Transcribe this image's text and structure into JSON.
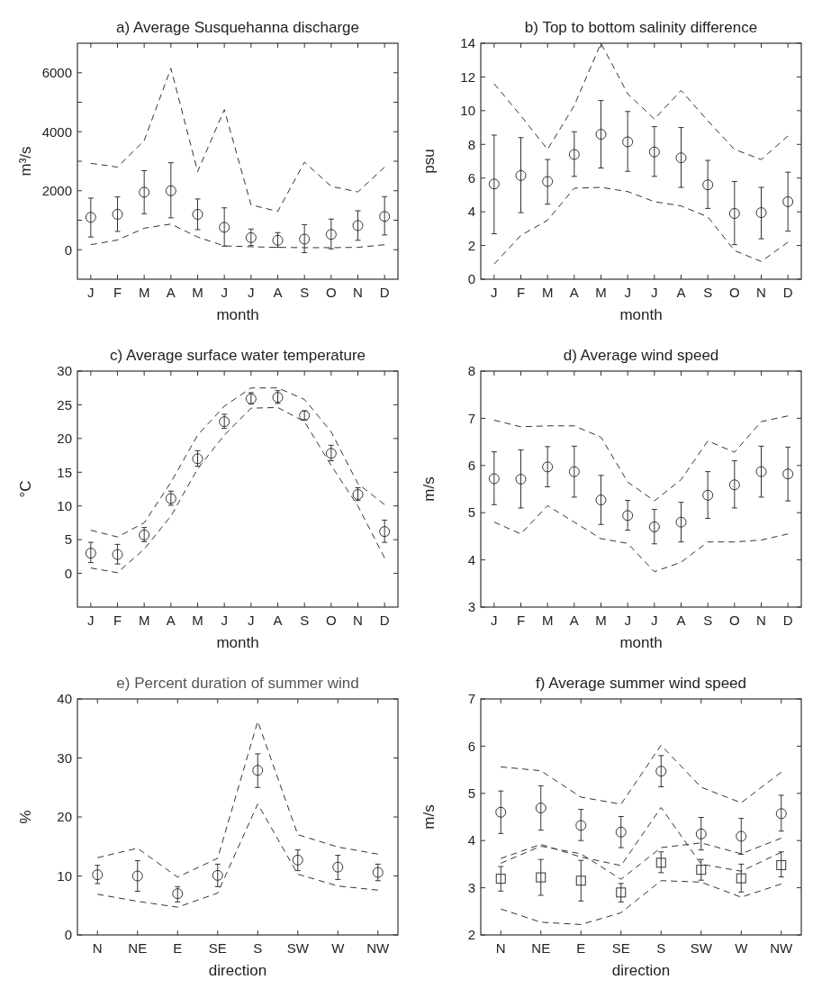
{
  "chart_data": [
    {
      "type": "scatter",
      "title": "a) Average Susquehanna discharge",
      "xlabel": "month",
      "ylabel": "m³/s",
      "categories": [
        "J",
        "F",
        "M",
        "A",
        "M",
        "J",
        "J",
        "A",
        "S",
        "O",
        "N",
        "D"
      ],
      "ylim": [
        -1000,
        7000
      ],
      "yticks": [
        0,
        {
          "value": 1000,
          "label": null
        },
        2000,
        {
          "value": 3000,
          "label": null
        },
        4000,
        {
          "value": 5000,
          "label": null
        },
        6000
      ],
      "grid": false,
      "series": [
        {
          "type": "scatter",
          "marker": "circle",
          "color": "#333333",
          "values": [
            1100,
            1200,
            1950,
            2000,
            1200,
            760,
            410,
            320,
            360,
            520,
            820,
            1130
          ],
          "errors": [
            [
              430,
              1750
            ],
            [
              620,
              1790
            ],
            [
              1220,
              2680
            ],
            [
              1080,
              2950
            ],
            [
              680,
              1720
            ],
            [
              120,
              1420
            ],
            [
              140,
              700
            ],
            [
              80,
              580
            ],
            [
              -100,
              850
            ],
            [
              30,
              1040
            ],
            [
              320,
              1320
            ],
            [
              500,
              1800
            ]
          ]
        },
        {
          "type": "line",
          "line_style": "dashed",
          "color": "#333333",
          "values": [
            2930,
            2800,
            3700,
            6150,
            2650,
            4750,
            1520,
            1300,
            2970,
            2150,
            1960,
            2800
          ]
        },
        {
          "type": "line",
          "line_style": "dashed",
          "color": "#333333",
          "values": [
            170,
            330,
            730,
            870,
            430,
            130,
            100,
            80,
            70,
            70,
            80,
            170
          ]
        }
      ]
    },
    {
      "type": "scatter",
      "title": "b) Top to bottom salinity difference",
      "xlabel": "month",
      "ylabel": "psu",
      "categories": [
        "J",
        "F",
        "M",
        "A",
        "M",
        "J",
        "J",
        "A",
        "S",
        "O",
        "N",
        "D"
      ],
      "ylim": [
        0,
        14
      ],
      "yticks": [
        0,
        2,
        4,
        6,
        8,
        10,
        12,
        14
      ],
      "grid": false,
      "series": [
        {
          "type": "scatter",
          "marker": "circle",
          "color": "#333333",
          "values": [
            5.65,
            6.15,
            5.8,
            7.4,
            8.6,
            8.15,
            7.55,
            7.2,
            5.6,
            3.9,
            3.95,
            4.6
          ],
          "errors": [
            [
              2.7,
              8.55
            ],
            [
              3.95,
              8.4
            ],
            [
              4.45,
              7.1
            ],
            [
              6.1,
              8.75
            ],
            [
              6.6,
              10.6
            ],
            [
              6.4,
              9.95
            ],
            [
              6.1,
              9.05
            ],
            [
              5.45,
              9.0
            ],
            [
              4.2,
              7.05
            ],
            [
              2.05,
              5.8
            ],
            [
              2.4,
              5.45
            ],
            [
              2.85,
              6.35
            ]
          ]
        },
        {
          "type": "line",
          "line_style": "dashed",
          "color": "#333333",
          "values": [
            11.6,
            9.7,
            7.7,
            10.3,
            14.0,
            11.0,
            9.5,
            11.2,
            9.4,
            7.7,
            7.1,
            8.5
          ]
        },
        {
          "type": "line",
          "line_style": "dashed",
          "color": "#333333",
          "values": [
            0.9,
            2.6,
            3.5,
            5.4,
            5.45,
            5.2,
            4.6,
            4.35,
            3.7,
            1.7,
            1.05,
            2.2
          ]
        }
      ]
    },
    {
      "type": "scatter",
      "title": "c) Average surface water temperature",
      "xlabel": "month",
      "ylabel": "°C",
      "categories": [
        "J",
        "F",
        "M",
        "A",
        "M",
        "J",
        "J",
        "A",
        "S",
        "O",
        "N",
        "D"
      ],
      "ylim": [
        -5,
        30
      ],
      "yticks": [
        0,
        5,
        10,
        15,
        20,
        25,
        30
      ],
      "grid": false,
      "series": [
        {
          "type": "scatter",
          "marker": "circle",
          "color": "#333333",
          "values": [
            3.0,
            2.8,
            5.7,
            11.1,
            17.0,
            22.5,
            25.9,
            26.1,
            23.4,
            17.8,
            11.7,
            6.2
          ],
          "errors": [
            [
              1.6,
              4.6
            ],
            [
              1.4,
              4.3
            ],
            [
              4.7,
              6.8
            ],
            [
              10.1,
              12.2
            ],
            [
              15.9,
              18.2
            ],
            [
              21.5,
              23.6
            ],
            [
              25.1,
              26.8
            ],
            [
              25.2,
              27.1
            ],
            [
              22.8,
              24.1
            ],
            [
              16.7,
              19.0
            ],
            [
              10.8,
              12.7
            ],
            [
              4.6,
              7.9
            ]
          ]
        },
        {
          "type": "line",
          "line_style": "dashed",
          "color": "#333333",
          "values": [
            6.4,
            5.4,
            7.5,
            13.5,
            20.5,
            24.8,
            27.5,
            27.5,
            25.8,
            21.0,
            13.3,
            10.2
          ]
        },
        {
          "type": "line",
          "line_style": "dashed",
          "color": "#333333",
          "values": [
            0.8,
            0.1,
            3.6,
            8.5,
            15.5,
            20.5,
            24.5,
            24.6,
            22.5,
            16.0,
            10.0,
            2.3
          ]
        }
      ]
    },
    {
      "type": "scatter",
      "title": "d) Average wind speed",
      "xlabel": "month",
      "ylabel": "m/s",
      "categories": [
        "J",
        "F",
        "M",
        "A",
        "M",
        "J",
        "J",
        "A",
        "S",
        "O",
        "N",
        "D"
      ],
      "ylim": [
        3,
        8
      ],
      "yticks": [
        3,
        4,
        5,
        6,
        7,
        8
      ],
      "grid": false,
      "series": [
        {
          "type": "scatter",
          "marker": "circle",
          "color": "#333333",
          "values": [
            5.72,
            5.71,
            5.97,
            5.87,
            5.27,
            4.94,
            4.7,
            4.8,
            5.37,
            5.59,
            5.87,
            5.82
          ],
          "errors": [
            [
              5.17,
              6.29
            ],
            [
              5.1,
              6.33
            ],
            [
              5.55,
              6.4
            ],
            [
              5.33,
              6.41
            ],
            [
              4.75,
              5.79
            ],
            [
              4.63,
              5.26
            ],
            [
              4.34,
              5.07
            ],
            [
              4.38,
              5.22
            ],
            [
              4.88,
              5.87
            ],
            [
              5.1,
              6.1
            ],
            [
              5.33,
              6.41
            ],
            [
              5.25,
              6.39
            ]
          ]
        },
        {
          "type": "line",
          "line_style": "dashed",
          "color": "#333333",
          "values": [
            6.96,
            6.82,
            6.84,
            6.84,
            6.6,
            5.65,
            5.25,
            5.7,
            6.52,
            6.28,
            6.93,
            7.05
          ]
        },
        {
          "type": "line",
          "line_style": "dashed",
          "color": "#333333",
          "values": [
            4.8,
            4.55,
            5.15,
            4.8,
            4.45,
            4.35,
            3.75,
            3.95,
            4.38,
            4.38,
            4.42,
            4.55
          ]
        }
      ]
    },
    {
      "type": "scatter",
      "title": "e) Percent duration of summer wind",
      "xlabel": "direction",
      "ylabel": "%",
      "categories": [
        "N",
        "NE",
        "E",
        "SE",
        "S",
        "SW",
        "W",
        "NW"
      ],
      "ylim": [
        0,
        40
      ],
      "yticks": [
        0,
        10,
        20,
        30,
        40
      ],
      "grid": false,
      "series": [
        {
          "type": "scatter",
          "marker": "circle",
          "color": "#333333",
          "values": [
            10.2,
            10.0,
            7.0,
            10.1,
            27.9,
            12.7,
            11.5,
            10.6
          ],
          "errors": [
            [
              8.7,
              11.8
            ],
            [
              7.4,
              12.6
            ],
            [
              5.6,
              8.2
            ],
            [
              8.2,
              12.0
            ],
            [
              25.0,
              30.7
            ],
            [
              10.9,
              14.4
            ],
            [
              9.4,
              13.5
            ],
            [
              9.2,
              12.0
            ]
          ]
        },
        {
          "type": "line",
          "line_style": "dashed",
          "color": "#333333",
          "values": [
            13.1,
            14.7,
            9.8,
            13.0,
            36.2,
            17.0,
            14.9,
            13.7
          ]
        },
        {
          "type": "line",
          "line_style": "dashed",
          "color": "#333333",
          "values": [
            6.9,
            5.7,
            4.7,
            7.1,
            22.2,
            10.3,
            8.3,
            7.6
          ]
        }
      ]
    },
    {
      "type": "scatter",
      "title": "f) Average summer wind speed",
      "xlabel": "direction",
      "ylabel": "m/s",
      "categories": [
        "N",
        "NE",
        "E",
        "SE",
        "S",
        "SW",
        "W",
        "NW"
      ],
      "ylim": [
        2,
        7
      ],
      "yticks": [
        2,
        3,
        4,
        5,
        6,
        7
      ],
      "grid": false,
      "series": [
        {
          "type": "scatter",
          "marker": "circle",
          "color": "#333333",
          "values": [
            4.6,
            4.69,
            4.32,
            4.18,
            5.47,
            4.14,
            4.09,
            4.57
          ],
          "errors": [
            [
              4.15,
              5.05
            ],
            [
              4.22,
              5.16
            ],
            [
              4.0,
              4.66
            ],
            [
              3.85,
              4.51
            ],
            [
              5.14,
              5.8
            ],
            [
              3.8,
              4.49
            ],
            [
              3.71,
              4.47
            ],
            [
              4.2,
              4.96
            ]
          ]
        },
        {
          "type": "line",
          "line_style": "dashed",
          "color": "#333333",
          "values": [
            5.56,
            5.48,
            4.92,
            4.77,
            6.02,
            5.13,
            4.8,
            5.45
          ]
        },
        {
          "type": "line",
          "line_style": "dashed",
          "color": "#333333",
          "values": [
            3.62,
            3.92,
            3.65,
            3.47,
            4.7,
            3.5,
            3.35,
            3.75
          ]
        },
        {
          "type": "scatter",
          "marker": "square",
          "color": "#333333",
          "values": [
            3.19,
            3.22,
            3.15,
            2.9,
            3.53,
            3.38,
            3.2,
            3.48
          ],
          "errors": [
            [
              2.93,
              3.45
            ],
            [
              2.84,
              3.6
            ],
            [
              2.72,
              3.58
            ],
            [
              2.7,
              3.09
            ],
            [
              3.32,
              3.76
            ],
            [
              3.16,
              3.6
            ],
            [
              2.91,
              3.5
            ],
            [
              3.23,
              3.76
            ]
          ]
        },
        {
          "type": "line",
          "line_style": "dashed",
          "color": "#333333",
          "values": [
            3.52,
            3.88,
            3.72,
            3.18,
            3.85,
            3.95,
            3.72,
            4.05
          ]
        },
        {
          "type": "line",
          "line_style": "dashed",
          "color": "#333333",
          "values": [
            2.55,
            2.27,
            2.22,
            2.47,
            3.15,
            3.12,
            2.8,
            3.08
          ]
        }
      ]
    }
  ]
}
